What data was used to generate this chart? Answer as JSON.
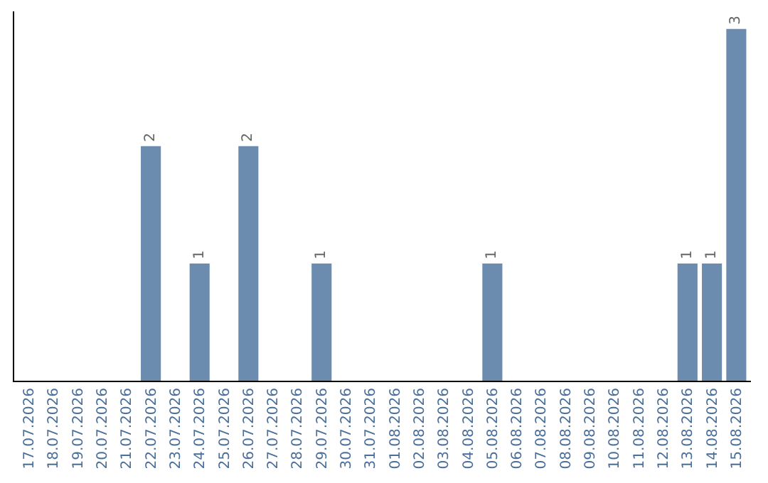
{
  "chart_data": {
    "type": "bar",
    "categories": [
      "17.07.2026",
      "18.07.2026",
      "19.07.2026",
      "20.07.2026",
      "21.07.2026",
      "22.07.2026",
      "23.07.2026",
      "24.07.2026",
      "25.07.2026",
      "26.07.2026",
      "27.07.2026",
      "28.07.2026",
      "29.07.2026",
      "30.07.2026",
      "31.07.2026",
      "01.08.2026",
      "02.08.2026",
      "03.08.2026",
      "04.08.2026",
      "05.08.2026",
      "06.08.2026",
      "07.08.2026",
      "08.08.2026",
      "09.08.2026",
      "10.08.2026",
      "11.08.2026",
      "12.08.2026",
      "13.08.2026",
      "14.08.2026",
      "15.08.2026"
    ],
    "values": [
      0,
      0,
      0,
      0,
      0,
      2,
      0,
      1,
      0,
      2,
      0,
      0,
      1,
      0,
      0,
      0,
      0,
      0,
      0,
      1,
      0,
      0,
      0,
      0,
      0,
      0,
      0,
      1,
      1,
      3
    ],
    "value_labels": [
      null,
      null,
      null,
      null,
      null,
      "2",
      null,
      "1",
      null,
      "2",
      null,
      null,
      "1",
      null,
      null,
      null,
      null,
      null,
      null,
      "1",
      null,
      null,
      null,
      null,
      null,
      null,
      null,
      "1",
      "1",
      "3"
    ],
    "color": "#6b8cae",
    "ylim": [
      0,
      3.15
    ],
    "tick_labels": "x",
    "legend": false
  }
}
